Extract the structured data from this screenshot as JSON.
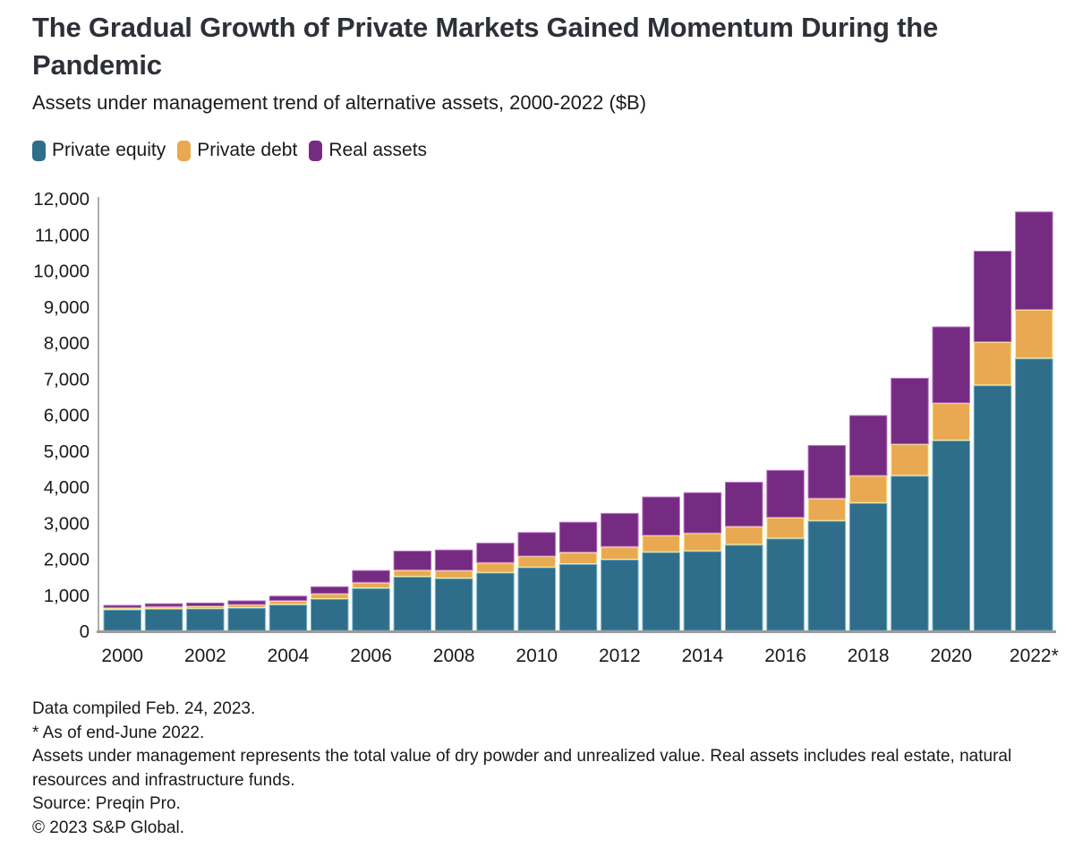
{
  "title": "The Gradual Growth of Private Markets Gained Momentum During the Pandemic",
  "subtitle": "Assets under management trend of alternative assets, 2000-2022 ($B)",
  "legend": [
    {
      "label": "Private equity",
      "color": "#2e6e8b"
    },
    {
      "label": "Private debt",
      "color": "#e9a952"
    },
    {
      "label": "Real assets",
      "color": "#762b82"
    }
  ],
  "chart_data": {
    "type": "bar",
    "stacked": true,
    "title": "The Gradual Growth of Private Markets Gained Momentum During the Pandemic",
    "subtitle": "Assets under management trend of alternative assets, 2000-2022 ($B)",
    "unit": "$B",
    "categories": [
      "2000",
      "2001",
      "2002",
      "2003",
      "2004",
      "2005",
      "2006",
      "2007",
      "2008",
      "2009",
      "2010",
      "2011",
      "2012",
      "2013",
      "2014",
      "2015",
      "2016",
      "2017",
      "2018",
      "2019",
      "2020",
      "2021",
      "2022*"
    ],
    "x_labels_shown": [
      "2000",
      "2002",
      "2004",
      "2006",
      "2008",
      "2010",
      "2012",
      "2014",
      "2016",
      "2018",
      "2020",
      "2022*"
    ],
    "series": [
      {
        "name": "Private equity",
        "color": "#2e6e8b",
        "values": [
          590,
          610,
          620,
          640,
          730,
          890,
          1185,
          1505,
          1460,
          1615,
          1765,
          1855,
          1980,
          2185,
          2215,
          2390,
          2565,
          3055,
          3550,
          4305,
          5285,
          6815,
          7560
        ]
      },
      {
        "name": "Private debt",
        "color": "#e9a952",
        "values": [
          50,
          60,
          65,
          85,
          105,
          140,
          155,
          180,
          215,
          275,
          305,
          325,
          355,
          460,
          495,
          505,
          580,
          620,
          755,
          875,
          1035,
          1200,
          1350
        ]
      },
      {
        "name": "Real assets",
        "color": "#762b82",
        "values": [
          80,
          95,
          100,
          120,
          140,
          205,
          345,
          540,
          580,
          555,
          670,
          845,
          935,
          1080,
          1135,
          1240,
          1320,
          1480,
          1680,
          1840,
          2125,
          2530,
          2725
        ]
      }
    ],
    "totals": [
      720,
      765,
      785,
      845,
      975,
      1235,
      1685,
      2225,
      2255,
      2445,
      2740,
      3025,
      3270,
      3725,
      3845,
      4135,
      4465,
      5155,
      5985,
      7020,
      8445,
      10545,
      11635
    ],
    "ylim": [
      0,
      12000
    ],
    "ytick_step": 1000,
    "ytick_labels": [
      "0",
      "1,000",
      "2,000",
      "3,000",
      "4,000",
      "5,000",
      "6,000",
      "7,000",
      "8,000",
      "9,000",
      "10,000",
      "11,000",
      "12,000"
    ],
    "grid": false,
    "legend_position": "top-left"
  },
  "footnotes": [
    "Data compiled Feb. 24, 2023.",
    "* As of end-June 2022.",
    "Assets under management represents the total value of dry powder and unrealized value. Real assets includes real estate, natural resources and infrastructure funds.",
    "Source: Preqin Pro.",
    "© 2023 S&P Global."
  ]
}
